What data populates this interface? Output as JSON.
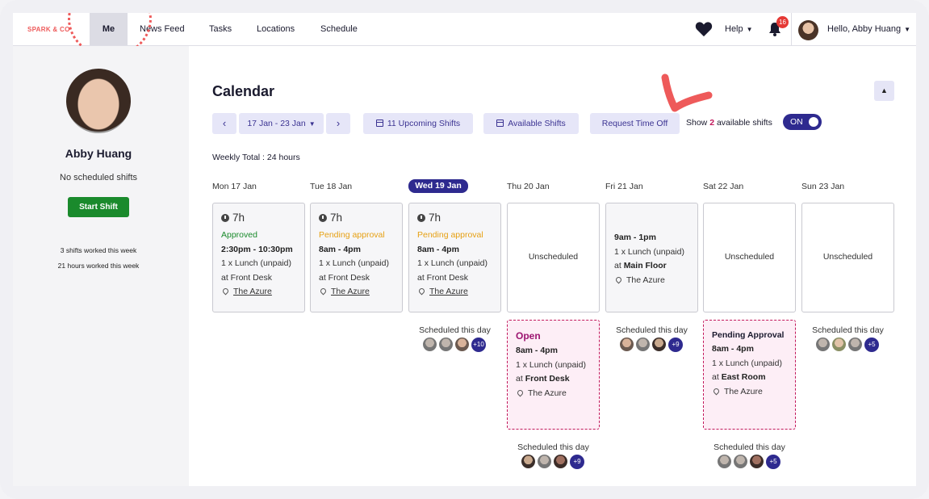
{
  "nav": {
    "logo": "SPARK & CO",
    "items": [
      "Me",
      "News Feed",
      "Tasks",
      "Locations",
      "Schedule"
    ],
    "help": "Help",
    "notification_count": "16",
    "greeting": "Hello, Abby Huang"
  },
  "sidebar": {
    "name": "Abby Huang",
    "no_shifts": "No scheduled shifts",
    "start_shift": "Start Shift",
    "shifts_worked": "3 shifts worked this week",
    "hours_worked": "21 hours worked this week"
  },
  "calendar": {
    "title": "Calendar",
    "date_range": "17 Jan - 23 Jan",
    "upcoming_shifts": "11 Upcoming Shifts",
    "available_shifts": "Available Shifts",
    "request_time_off": "Request Time Off",
    "show_prefix": "Show",
    "show_count": "2",
    "show_suffix": "available shifts",
    "toggle": "ON",
    "weekly_total": "Weekly Total : 24 hours"
  },
  "days": [
    {
      "label": "Mon 17 Jan",
      "today": false,
      "type": "shift",
      "hours": "7h",
      "status": "Approved",
      "status_kind": "approved",
      "time": "2:30pm - 10:30pm",
      "break": "1 x Lunch (unpaid)",
      "area": "at Front Desk",
      "location": "The Azure"
    },
    {
      "label": "Tue 18 Jan",
      "today": false,
      "type": "shift",
      "hours": "7h",
      "status": "Pending approval",
      "status_kind": "pending",
      "time": "8am - 4pm",
      "break": "1 x Lunch (unpaid)",
      "area": "at Front Desk",
      "location": "The Azure"
    },
    {
      "label": "Wed 19 Jan",
      "today": true,
      "type": "shift",
      "hours": "7h",
      "status": "Pending approval",
      "status_kind": "pending",
      "time": "8am - 4pm",
      "break": "1 x Lunch (unpaid)",
      "area": "at Front Desk",
      "location": "The Azure",
      "scheduled_label": "Scheduled this day",
      "scheduled_more": "+10"
    },
    {
      "label": "Thu 20 Jan",
      "today": false,
      "type": "unscheduled",
      "text": "Unscheduled",
      "open": {
        "title": "Open",
        "time": "8am - 4pm",
        "break": "1 x Lunch (unpaid)",
        "area_prefix": "at",
        "area": "Front Desk",
        "location": "The Azure"
      },
      "scheduled_label": "Scheduled this day",
      "scheduled_more": "+9"
    },
    {
      "label": "Fri 21 Jan",
      "today": false,
      "type": "published",
      "time": "9am - 1pm",
      "break": "1 x Lunch (unpaid)",
      "area_prefix": "at",
      "area": "Main Floor",
      "location": "The Azure",
      "scheduled_label": "Scheduled this day",
      "scheduled_more": "+9"
    },
    {
      "label": "Sat 22 Jan",
      "today": false,
      "type": "unscheduled",
      "text": "Unscheduled",
      "open": {
        "title": "Pending Approval",
        "time": "8am - 4pm",
        "break": "1 x Lunch (unpaid)",
        "area_prefix": "at",
        "area": "East Room",
        "location": "The Azure"
      },
      "scheduled_label": "Scheduled this day",
      "scheduled_more": "+5"
    },
    {
      "label": "Sun 23 Jan",
      "today": false,
      "type": "unscheduled",
      "text": "Unscheduled",
      "scheduled_label": "Scheduled this day",
      "scheduled_more": "+5"
    }
  ]
}
